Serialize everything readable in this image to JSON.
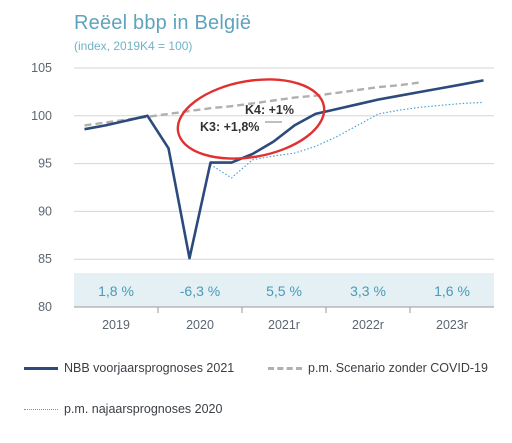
{
  "chart_data": {
    "type": "line",
    "title": "Reëel bbp in België",
    "subtitle": "(index, 2019K4 = 100)",
    "ylim": [
      80,
      107
    ],
    "yticks": [
      80,
      85,
      90,
      95,
      100,
      105
    ],
    "categories": [
      "2019",
      "2020",
      "2021r",
      "2022r",
      "2023r"
    ],
    "growth_rates": [
      "1,8 %",
      "-6,3 %",
      "5,5 %",
      "3,3 %",
      "1,6 %"
    ],
    "series": [
      {
        "name": "NBB voorjaarsprognoses 2021",
        "color": "#2c4a7c",
        "style": "solid",
        "x": [
          0,
          1,
          2,
          3,
          4,
          5,
          6,
          7,
          8,
          9,
          10,
          11,
          12,
          13,
          14,
          15,
          16,
          17,
          18,
          19
        ],
        "y": [
          98.6,
          99.0,
          99.5,
          100.0,
          96.6,
          85.1,
          95.1,
          95.1,
          96.0,
          97.3,
          99.0,
          100.2,
          100.7,
          101.2,
          101.7,
          102.1,
          102.5,
          102.9,
          103.3,
          103.7
        ]
      },
      {
        "name": "p.m. Scenario zonder COVID-19",
        "color": "#b0b0b0",
        "style": "dashed",
        "x": [
          0,
          1,
          2,
          3,
          4,
          5,
          6,
          7,
          8,
          9,
          10,
          11,
          12,
          13,
          14,
          15,
          16
        ],
        "y": [
          99.0,
          99.3,
          99.6,
          99.9,
          100.2,
          100.5,
          100.8,
          101.0,
          101.3,
          101.6,
          101.9,
          102.1,
          102.4,
          102.7,
          103.0,
          103.2,
          103.5
        ]
      },
      {
        "name": "p.m. najaarsprognoses 2020",
        "color": "#4aa3d8",
        "style": "dotted",
        "x": [
          6,
          7,
          8,
          9,
          10,
          11,
          12,
          13,
          14,
          15,
          16,
          17,
          18,
          19
        ],
        "y": [
          94.9,
          93.5,
          95.4,
          95.8,
          96.1,
          96.8,
          97.8,
          99.0,
          100.2,
          100.6,
          100.9,
          101.1,
          101.3,
          101.4
        ]
      }
    ],
    "annotations": [
      "K4: +1%",
      "K3: +1,8%"
    ],
    "highlight_color": "#e03030",
    "band_color": "#e4f0f4"
  }
}
